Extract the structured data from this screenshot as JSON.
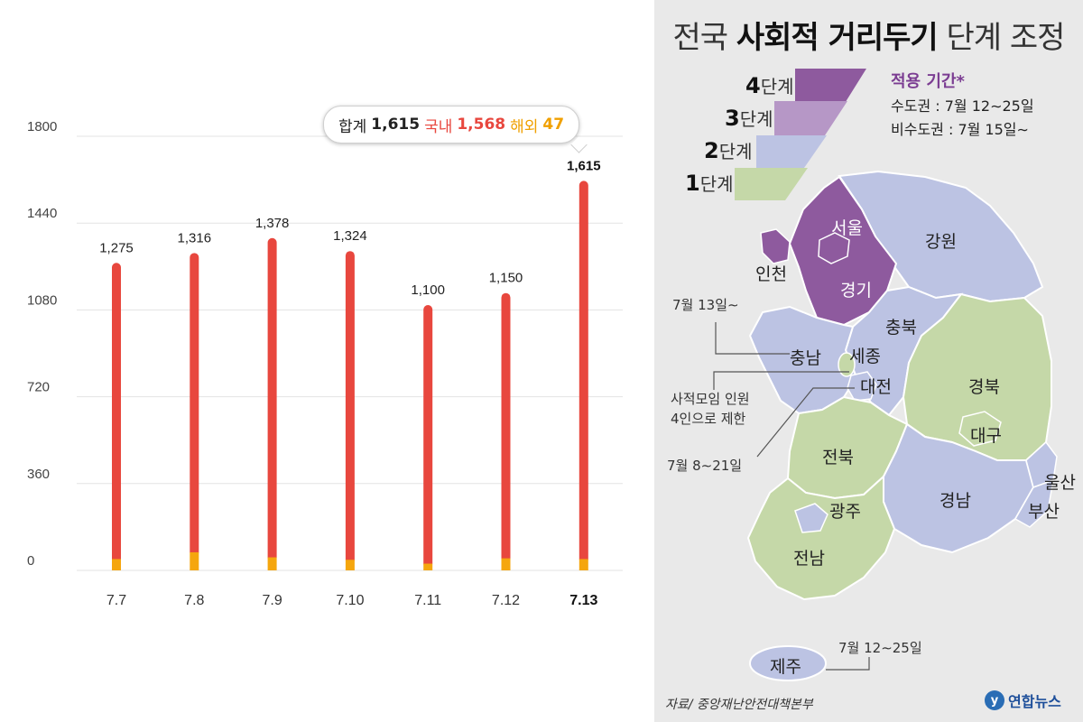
{
  "chart_data": {
    "type": "bar",
    "categories": [
      "7.7",
      "7.8",
      "7.9",
      "7.10",
      "7.11",
      "7.12",
      "7.13"
    ],
    "series": [
      {
        "name": "국내",
        "values": [
          1228,
          1241,
          1324,
          1280,
          1072,
          1100,
          1568
        ]
      },
      {
        "name": "해외",
        "values": [
          47,
          75,
          54,
          44,
          28,
          50,
          47
        ]
      }
    ],
    "totals": [
      1275,
      1316,
      1378,
      1324,
      1100,
      1150,
      1615
    ],
    "total_labels": [
      "1,275",
      "1,316",
      "1,378",
      "1,324",
      "1,100",
      "1,150",
      "1,615"
    ],
    "yticks": [
      0,
      360,
      720,
      1080,
      1440,
      1800
    ],
    "ylim": [
      0,
      1800
    ],
    "highlight_index": 6,
    "grid": true,
    "colors": {
      "domestic": "#e8473e",
      "overseas": "#f5a60e",
      "grid": "#e3e3e3"
    },
    "tooltip": {
      "total_label": "합계",
      "total_value": "1,615",
      "domestic_label": "국내",
      "domestic_value": "1,568",
      "overseas_label": "해외",
      "overseas_value": "47"
    }
  },
  "map": {
    "title_prefix": "전국",
    "title_bold": "사회적 거리두기",
    "title_suffix": "단계 조정",
    "legend": [
      {
        "num": "4",
        "label": "단계",
        "color": "#8e5a9e"
      },
      {
        "num": "3",
        "label": "단계",
        "color": "#b697c6"
      },
      {
        "num": "2",
        "label": "단계",
        "color": "#bcc3e3"
      },
      {
        "num": "1",
        "label": "단계",
        "color": "#c5d8a8"
      }
    ],
    "period": {
      "title": "적용 기간*",
      "metro": "수도권 : 7월 12∼25일",
      "nonmetro": "비수도권 : 7월 15일∼"
    },
    "regions": {
      "seoul": "서울",
      "incheon": "인천",
      "gyeonggi": "경기",
      "gangwon": "강원",
      "chungbuk": "충북",
      "chungnam": "충남",
      "sejong": "세종",
      "daejeon": "대전",
      "gyeongbuk": "경북",
      "daegu": "대구",
      "jeonbuk": "전북",
      "gwangju": "광주",
      "jeonnam": "전남",
      "gyeongnam": "경남",
      "ulsan": "울산",
      "busan": "부산",
      "jeju": "제주"
    },
    "notes": {
      "chungnam_date": "7월 13일∼",
      "daejeon_line1": "사적모임 인원",
      "daejeon_line2": "4인으로 제한",
      "daejeon_date": "7월 8∼21일",
      "jeju_date": "7월 12∼25일"
    },
    "source": "자료/ 중앙재난안전대책본부",
    "logo_text": "연합뉴스"
  }
}
